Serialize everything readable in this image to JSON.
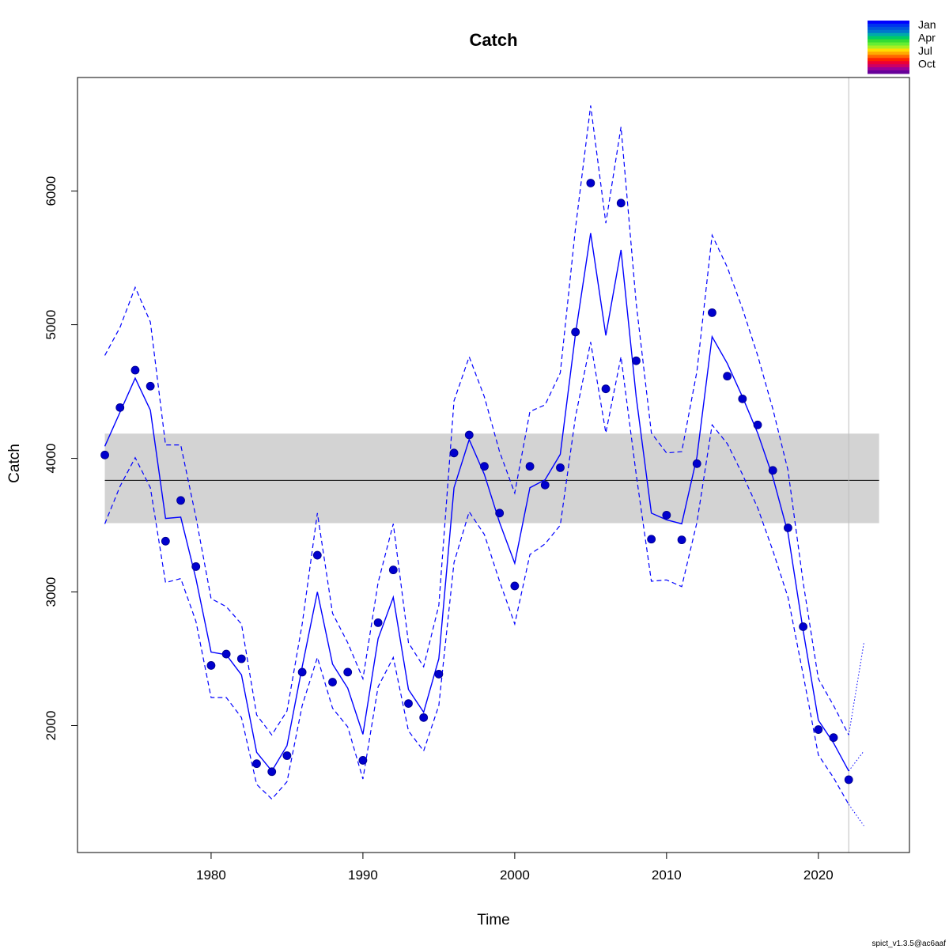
{
  "chart_data": {
    "type": "line",
    "title": "Catch",
    "xlabel": "Time",
    "ylabel": "Catch",
    "xlim": [
      1971.2,
      2026.0
    ],
    "ylim": [
      1050,
      6850
    ],
    "x_ticks": [
      1980,
      1990,
      2000,
      2010,
      2020
    ],
    "y_ticks": [
      2000,
      3000,
      4000,
      5000,
      6000
    ],
    "grid": false,
    "colors": {
      "series": "#0000ff",
      "points": "#0000cd",
      "band": "#d3d3d3",
      "mean": "#000000",
      "vline": "#bebebe"
    },
    "observed": {
      "x": [
        1973,
        1974,
        1975,
        1976,
        1977,
        1978,
        1979,
        1980,
        1981,
        1982,
        1983,
        1984,
        1985,
        1986,
        1987,
        1988,
        1989,
        1990,
        1991,
        1992,
        1993,
        1994,
        1995,
        1996,
        1997,
        1998,
        1999,
        2000,
        2001,
        2002,
        2003,
        2004,
        2005,
        2006,
        2007,
        2008,
        2009,
        2010,
        2011,
        2012,
        2013,
        2014,
        2015,
        2016,
        2017,
        2018,
        2019,
        2020,
        2021,
        2022
      ],
      "y": [
        4025,
        4380,
        4660,
        4540,
        3380,
        3685,
        3190,
        2450,
        2535,
        2500,
        1715,
        1655,
        1775,
        2400,
        3275,
        2325,
        2400,
        1740,
        2770,
        3165,
        2165,
        2060,
        2385,
        4040,
        4175,
        3940,
        3590,
        3045,
        3940,
        3800,
        3930,
        4945,
        6060,
        4520,
        5910,
        4730,
        3395,
        3575,
        3390,
        3960,
        5090,
        4615,
        4445,
        4250,
        3910,
        3480,
        2740,
        1970,
        1910,
        1595
      ]
    },
    "predicted": {
      "x": [
        1973,
        1974,
        1975,
        1976,
        1977,
        1978,
        1979,
        1980,
        1981,
        1982,
        1983,
        1984,
        1985,
        1986,
        1987,
        1988,
        1989,
        1990,
        1991,
        1992,
        1993,
        1994,
        1995,
        1996,
        1997,
        1998,
        1999,
        2000,
        2001,
        2002,
        2003,
        2004,
        2005,
        2006,
        2007,
        2008,
        2009,
        2010,
        2011,
        2012,
        2013,
        2014,
        2015,
        2016,
        2017,
        2018,
        2019,
        2020,
        2021,
        2022
      ],
      "y": [
        4090,
        4345,
        4600,
        4360,
        3550,
        3560,
        3100,
        2550,
        2530,
        2380,
        1800,
        1660,
        1850,
        2440,
        3000,
        2460,
        2280,
        1935,
        2650,
        2960,
        2270,
        2100,
        2500,
        3780,
        4140,
        3880,
        3520,
        3215,
        3780,
        3840,
        4030,
        4930,
        5685,
        4920,
        5560,
        4460,
        3590,
        3540,
        3510,
        4010,
        4910,
        4710,
        4460,
        4190,
        3860,
        3440,
        2710,
        2040,
        1870,
        1660
      ]
    },
    "upper_ci": {
      "x": [
        1973,
        1974,
        1975,
        1976,
        1977,
        1978,
        1979,
        1980,
        1981,
        1982,
        1983,
        1984,
        1985,
        1986,
        1987,
        1988,
        1989,
        1990,
        1991,
        1992,
        1993,
        1994,
        1995,
        1996,
        1997,
        1998,
        1999,
        2000,
        2001,
        2002,
        2003,
        2004,
        2005,
        2006,
        2007,
        2008,
        2009,
        2010,
        2011,
        2012,
        2013,
        2014,
        2015,
        2016,
        2017,
        2018,
        2019,
        2020,
        2021,
        2022
      ],
      "y": [
        4770,
        4980,
        5280,
        5020,
        4100,
        4100,
        3560,
        2950,
        2890,
        2760,
        2080,
        1930,
        2110,
        2760,
        3590,
        2840,
        2620,
        2350,
        3070,
        3510,
        2620,
        2440,
        2900,
        4430,
        4760,
        4460,
        4050,
        3740,
        4350,
        4400,
        4640,
        5720,
        6640,
        5760,
        6480,
        5160,
        4190,
        4040,
        4050,
        4650,
        5670,
        5430,
        5120,
        4770,
        4370,
        3910,
        3070,
        2350,
        2150,
        1930
      ]
    },
    "lower_ci": {
      "x": [
        1973,
        1974,
        1975,
        1976,
        1977,
        1978,
        1979,
        1980,
        1981,
        1982,
        1983,
        1984,
        1985,
        1986,
        1987,
        1988,
        1989,
        1990,
        1991,
        1992,
        1993,
        1994,
        1995,
        1996,
        1997,
        1998,
        1999,
        2000,
        2001,
        2002,
        2003,
        2004,
        2005,
        2006,
        2007,
        2008,
        2009,
        2010,
        2011,
        2012,
        2013,
        2014,
        2015,
        2016,
        2017,
        2018,
        2019,
        2020,
        2021,
        2022
      ],
      "y": [
        3510,
        3790,
        4005,
        3780,
        3070,
        3100,
        2780,
        2210,
        2210,
        2060,
        1560,
        1450,
        1580,
        2150,
        2510,
        2130,
        1990,
        1600,
        2290,
        2510,
        1960,
        1810,
        2150,
        3220,
        3600,
        3430,
        3080,
        2760,
        3280,
        3360,
        3500,
        4310,
        4870,
        4190,
        4760,
        3880,
        3080,
        3090,
        3040,
        3520,
        4250,
        4110,
        3880,
        3630,
        3310,
        2960,
        2380,
        1780,
        1610,
        1410
      ]
    },
    "forecast": {
      "x": [
        2022,
        2023
      ],
      "y": [
        1660,
        1810
      ],
      "upper": [
        1930,
        2620
      ],
      "lower": [
        1410,
        1250
      ]
    },
    "mean_line": {
      "y": 3835,
      "x_start": 1973,
      "x_end": 2024
    },
    "band": {
      "lower": 3515,
      "upper": 4185,
      "x_start": 1973,
      "x_end": 2024
    },
    "vline_x": 2022,
    "legend": {
      "placement": "top-right",
      "labels": [
        "Jan",
        "Apr",
        "Jul",
        "Oct"
      ],
      "colors": [
        "#0000ff",
        "#0033ee",
        "#0055dd",
        "#0077cc",
        "#00aaaa",
        "#00cc66",
        "#33dd33",
        "#66ee33",
        "#aaee22",
        "#ffdd00",
        "#ffaa00",
        "#ff6600",
        "#ff2200",
        "#ee0033",
        "#cc0066",
        "#990099",
        "#660099"
      ]
    }
  },
  "footer": {
    "version": "spict_v1.3.5@ac6aaf"
  }
}
